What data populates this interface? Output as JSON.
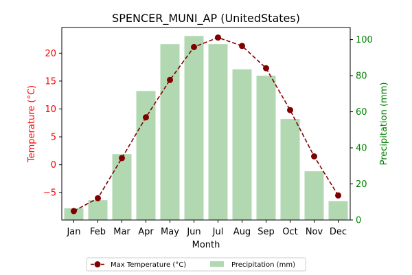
{
  "chart_data": {
    "type": "bar+line",
    "title": "SPENCER_MUNI_AP (UnitedStates)",
    "xlabel": "Month",
    "categories": [
      "Jan",
      "Feb",
      "Mar",
      "Apr",
      "May",
      "Jun",
      "Jul",
      "Aug",
      "Sep",
      "Oct",
      "Nov",
      "Dec"
    ],
    "y_left": {
      "label": "Temperature (°C)",
      "range": [
        -9.9,
        24.6
      ],
      "ticks": [
        -5,
        0,
        5,
        10,
        15,
        20
      ],
      "tick_labels": [
        "−5",
        "0",
        "5",
        "10",
        "15",
        "20"
      ],
      "color": "#ff0000"
    },
    "y_right": {
      "label": "Precipitation (mm)",
      "range": [
        0,
        106.7
      ],
      "ticks": [
        0,
        20,
        40,
        60,
        80,
        100
      ],
      "tick_labels": [
        "0",
        "20",
        "40",
        "60",
        "80",
        "100"
      ],
      "color": "#008000"
    },
    "series": [
      {
        "name": "Max Temperature (°C)",
        "kind": "line",
        "axis": "left",
        "color": "#800000",
        "values": [
          -8.3,
          -6.0,
          1.2,
          8.5,
          15.2,
          21.1,
          22.8,
          21.3,
          17.3,
          9.8,
          1.5,
          -5.5
        ]
      },
      {
        "name": "Precipitation (mm)",
        "kind": "bar",
        "axis": "right",
        "color": "#b2d8b2",
        "values": [
          6.5,
          11.0,
          36.5,
          71.5,
          97.5,
          102.0,
          97.5,
          83.5,
          80.0,
          56.0,
          27.0,
          10.5
        ]
      }
    ],
    "legend": {
      "placement": "bottom-center"
    },
    "grid": false
  }
}
